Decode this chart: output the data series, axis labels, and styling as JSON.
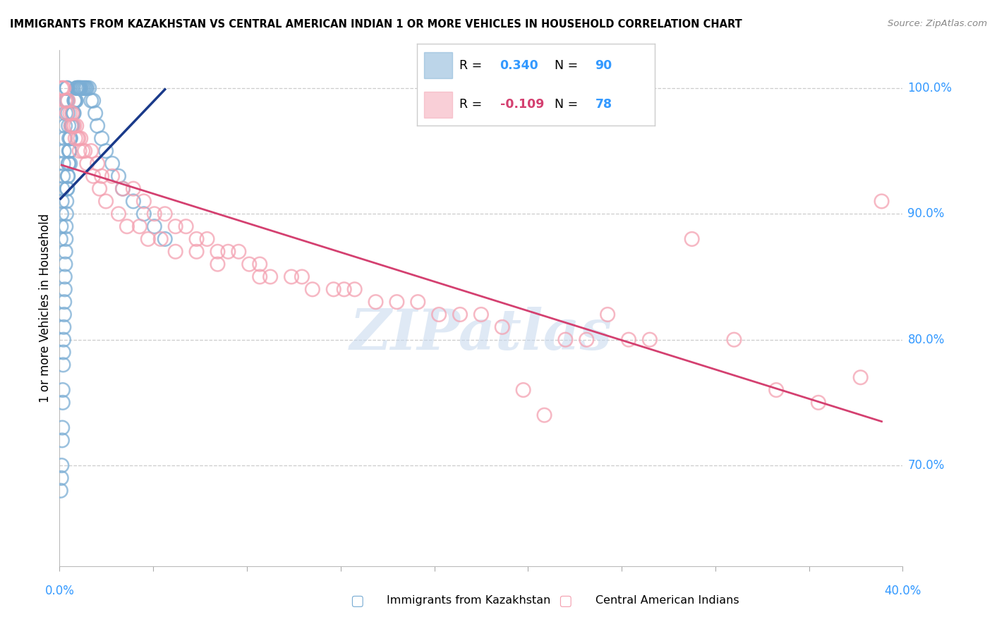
{
  "title": "IMMIGRANTS FROM KAZAKHSTAN VS CENTRAL AMERICAN INDIAN 1 OR MORE VEHICLES IN HOUSEHOLD CORRELATION CHART",
  "source": "Source: ZipAtlas.com",
  "ylabel": "1 or more Vehicles in Household",
  "x_min": 0.0,
  "x_max": 40.0,
  "y_min": 62.0,
  "y_max": 103.0,
  "y_ticks": [
    70.0,
    80.0,
    90.0,
    100.0
  ],
  "y_tick_labels": [
    "70.0%",
    "80.0%",
    "90.0%",
    "100.0%"
  ],
  "legend_blue_R": "0.340",
  "legend_blue_N": "90",
  "legend_pink_R": "-0.109",
  "legend_pink_N": "78",
  "blue_color": "#7aadd4",
  "pink_color": "#f4a0b0",
  "blue_line_color": "#1a3a8a",
  "pink_line_color": "#d44070",
  "watermark_text": "ZIPatlas",
  "blue_x": [
    0.05,
    0.08,
    0.1,
    0.12,
    0.13,
    0.15,
    0.15,
    0.17,
    0.18,
    0.19,
    0.2,
    0.22,
    0.23,
    0.25,
    0.25,
    0.27,
    0.28,
    0.3,
    0.3,
    0.32,
    0.33,
    0.35,
    0.37,
    0.38,
    0.4,
    0.42,
    0.43,
    0.45,
    0.47,
    0.5,
    0.52,
    0.55,
    0.57,
    0.6,
    0.63,
    0.65,
    0.68,
    0.7,
    0.72,
    0.75,
    0.78,
    0.8,
    0.83,
    0.85,
    0.88,
    0.9,
    0.93,
    0.95,
    0.98,
    1.0,
    1.05,
    1.1,
    1.15,
    1.2,
    1.25,
    1.3,
    1.4,
    1.5,
    1.6,
    1.7,
    1.8,
    2.0,
    2.2,
    2.5,
    2.8,
    3.0,
    3.5,
    4.0,
    4.5,
    5.0,
    0.05,
    0.07,
    0.09,
    0.11,
    0.13,
    0.16,
    0.18,
    0.21,
    0.24,
    0.26,
    0.29,
    0.31,
    0.34,
    0.36,
    0.38,
    0.4,
    0.43,
    0.46,
    0.48,
    0.5
  ],
  "blue_y": [
    68,
    69,
    70,
    72,
    73,
    75,
    76,
    78,
    79,
    80,
    81,
    82,
    83,
    84,
    85,
    86,
    87,
    88,
    89,
    90,
    91,
    92,
    92,
    93,
    93,
    94,
    94,
    95,
    95,
    96,
    96,
    97,
    97,
    97,
    98,
    98,
    98,
    99,
    99,
    99,
    99,
    100,
    100,
    100,
    100,
    100,
    100,
    100,
    100,
    100,
    100,
    100,
    100,
    100,
    100,
    100,
    100,
    99,
    99,
    98,
    97,
    96,
    95,
    94,
    93,
    92,
    91,
    90,
    89,
    88,
    88,
    89,
    90,
    91,
    92,
    93,
    94,
    95,
    96,
    97,
    98,
    99,
    100,
    100,
    99,
    98,
    97,
    96,
    95,
    94
  ],
  "pink_x": [
    0.1,
    0.2,
    0.3,
    0.4,
    0.5,
    0.6,
    0.7,
    0.8,
    0.9,
    1.0,
    1.2,
    1.5,
    1.8,
    2.0,
    2.5,
    3.0,
    3.5,
    4.0,
    4.5,
    5.0,
    5.5,
    6.0,
    6.5,
    7.0,
    7.5,
    8.0,
    8.5,
    9.0,
    9.5,
    10.0,
    11.0,
    12.0,
    13.0,
    14.0,
    15.0,
    16.0,
    17.0,
    18.0,
    19.0,
    20.0,
    21.0,
    22.0,
    23.0,
    24.0,
    25.0,
    26.0,
    27.0,
    28.0,
    30.0,
    32.0,
    34.0,
    36.0,
    38.0,
    39.0,
    0.15,
    0.25,
    0.35,
    0.55,
    0.65,
    0.75,
    0.85,
    0.95,
    1.1,
    1.3,
    1.6,
    1.9,
    2.2,
    2.8,
    3.2,
    3.8,
    4.2,
    4.8,
    5.5,
    6.5,
    7.5,
    9.5,
    11.5,
    13.5
  ],
  "pink_y": [
    100,
    100,
    99,
    99,
    98,
    98,
    97,
    97,
    96,
    96,
    95,
    95,
    94,
    93,
    93,
    92,
    92,
    91,
    90,
    90,
    89,
    89,
    88,
    88,
    87,
    87,
    87,
    86,
    86,
    85,
    85,
    84,
    84,
    84,
    83,
    83,
    83,
    82,
    82,
    82,
    81,
    76,
    74,
    80,
    80,
    82,
    80,
    80,
    88,
    80,
    76,
    75,
    77,
    91,
    100,
    99,
    98,
    97,
    97,
    96,
    96,
    95,
    95,
    94,
    93,
    92,
    91,
    90,
    89,
    89,
    88,
    88,
    87,
    87,
    86,
    85,
    85,
    84
  ]
}
